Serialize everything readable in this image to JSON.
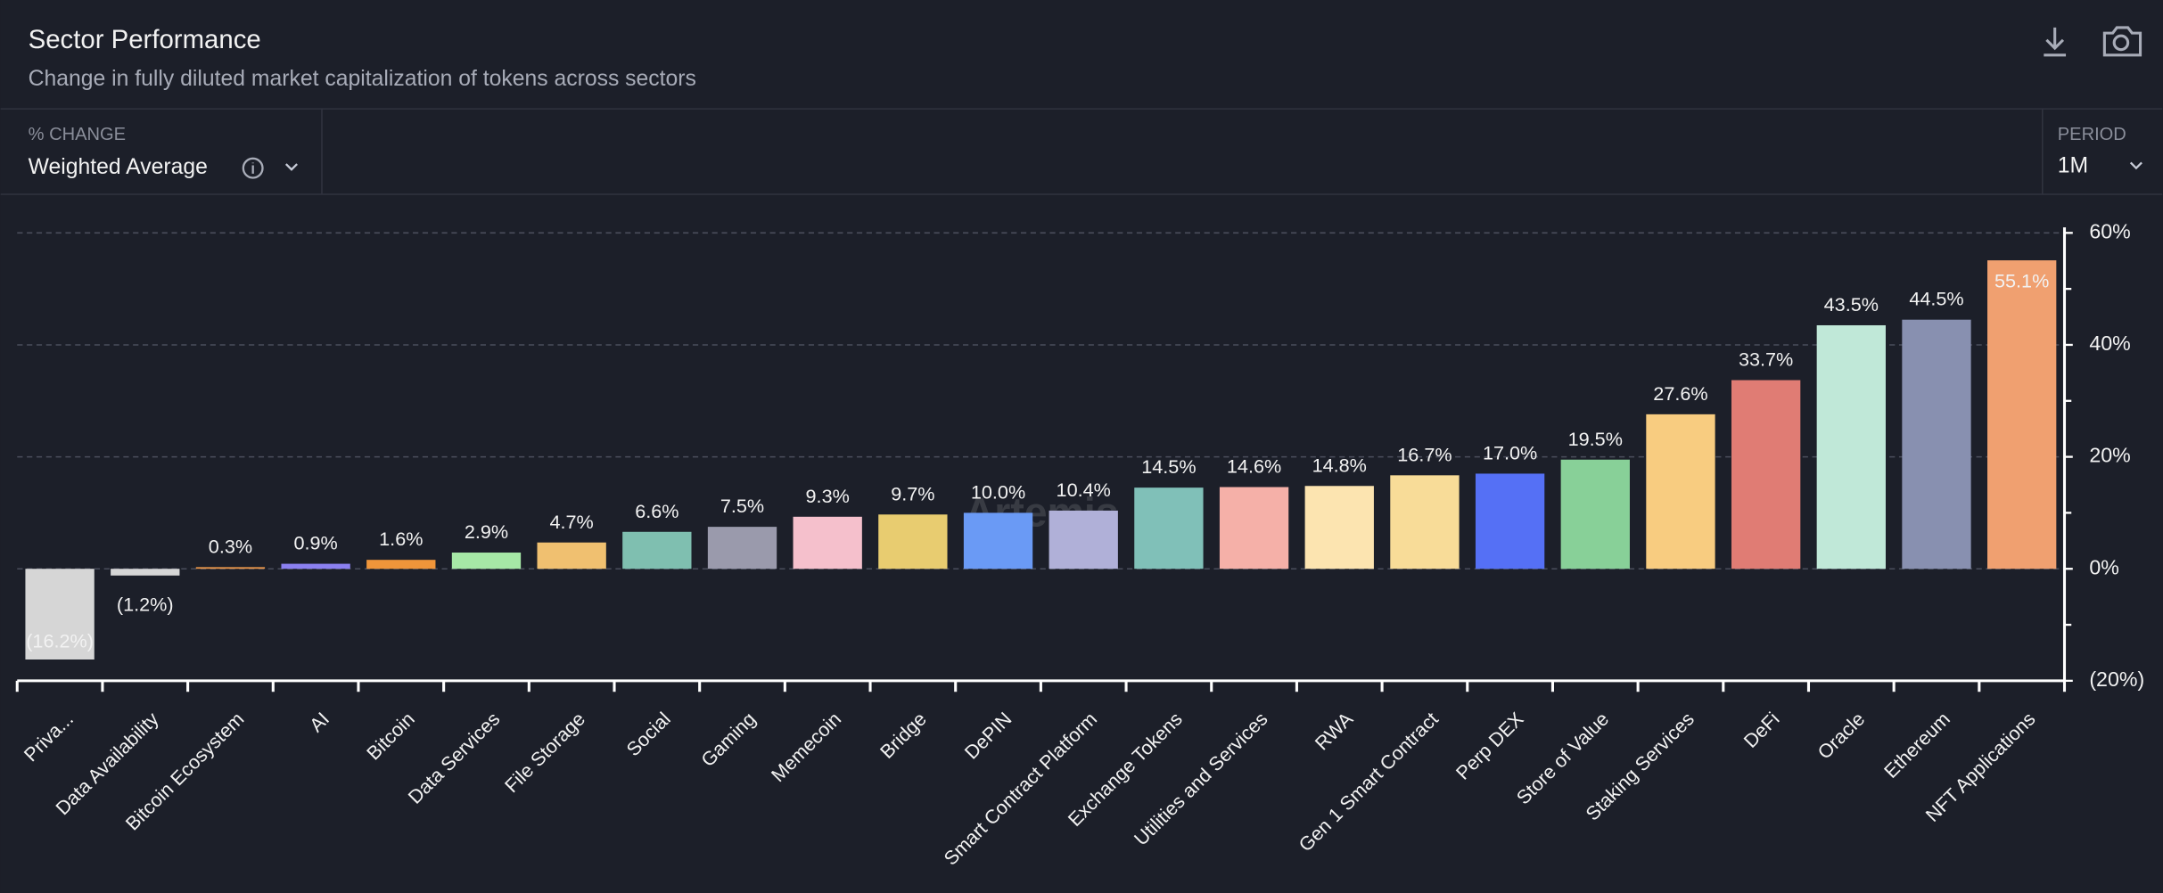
{
  "header": {
    "title": "Sector Performance",
    "subtitle": "Change in fully diluted market capitalization of tokens across sectors"
  },
  "controls": {
    "metric_label": "% CHANGE",
    "metric_value": "Weighted Average",
    "period_label": "PERIOD",
    "period_value": "1M"
  },
  "watermark": "Artemis",
  "chart_data": {
    "type": "bar",
    "categories": [
      "Priva...",
      "Data Availability",
      "Bitcoin Ecosystem",
      "AI",
      "Bitcoin",
      "Data Services",
      "File Storage",
      "Social",
      "Gaming",
      "Memecoin",
      "Bridge",
      "DePIN",
      "Smart Contract Platform",
      "Exchange Tokens",
      "Utilities and Services",
      "RWA",
      "Gen 1 Smart Contract",
      "Perp DEX",
      "Store of Value",
      "Staking Services",
      "DeFi",
      "Oracle",
      "Ethereum",
      "NFT Applications"
    ],
    "values": [
      -16.2,
      -1.2,
      0.3,
      0.9,
      1.6,
      2.9,
      4.7,
      6.6,
      7.5,
      9.3,
      9.7,
      10.0,
      10.4,
      14.5,
      14.6,
      14.8,
      16.7,
      17.0,
      19.5,
      27.6,
      33.7,
      43.5,
      44.5,
      55.1
    ],
    "value_labels": [
      "(16.2%)",
      "(1.2%)",
      "0.3%",
      "0.9%",
      "1.6%",
      "2.9%",
      "4.7%",
      "6.6%",
      "7.5%",
      "9.3%",
      "9.7%",
      "10.0%",
      "10.4%",
      "14.5%",
      "14.6%",
      "14.8%",
      "16.7%",
      "17.0%",
      "19.5%",
      "27.6%",
      "33.7%",
      "43.5%",
      "44.5%",
      "55.1%"
    ],
    "colors": [
      "#d6d6d6",
      "#d6d6d6",
      "#e8954a",
      "#8b80f0",
      "#f0953a",
      "#a6e8a6",
      "#f0c070",
      "#7fbfb0",
      "#9a9aac",
      "#f5c0cc",
      "#e8cc70",
      "#6a9af5",
      "#b0b0d8",
      "#80c0b8",
      "#f5b0a8",
      "#fce4b0",
      "#f8dc98",
      "#5570f5",
      "#88d098",
      "#f8cc80",
      "#e07c74",
      "#c0e8d8",
      "#8890b0",
      "#f0a070"
    ],
    "ylim": [
      -20,
      60
    ],
    "yticks": [
      {
        "value": -20,
        "label": "(20%)"
      },
      {
        "value": 0,
        "label": "0%"
      },
      {
        "value": 20,
        "label": "20%"
      },
      {
        "value": 40,
        "label": "40%"
      },
      {
        "value": 60,
        "label": "60%"
      }
    ],
    "minor_yticks": [
      -10,
      10,
      30,
      50
    ],
    "grid": true
  }
}
